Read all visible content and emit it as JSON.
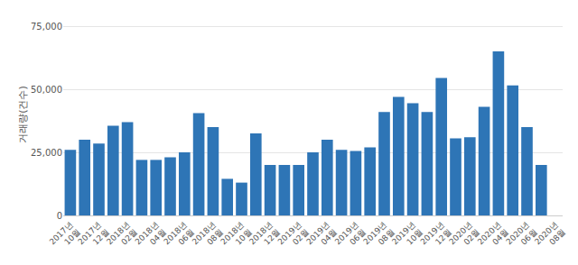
{
  "chart_data": {
    "type": "bar",
    "ylabel": "거래량(건수)",
    "categories": [
      "2017년\n10월",
      null,
      "2017년\n12월",
      null,
      "2018년\n02월",
      null,
      "2018년\n04월",
      null,
      "2018년\n06월",
      null,
      "2018년\n08월",
      null,
      "2018년\n10월",
      null,
      "2018년\n12월",
      null,
      "2019년\n02월",
      null,
      "2019년\n04월",
      null,
      "2019년\n06월",
      null,
      "2019년\n08월",
      null,
      "2019년\n10월",
      null,
      "2019년\n12월",
      null,
      "2020년\n02월",
      null,
      "2020년\n04월",
      null,
      "2020년\n06월",
      null,
      "2020년\n08월"
    ],
    "values": [
      26000,
      30000,
      28500,
      35500,
      37000,
      22000,
      22000,
      23000,
      25000,
      40500,
      35000,
      14500,
      13000,
      32500,
      20000,
      20000,
      20000,
      25000,
      30000,
      26000,
      25500,
      27000,
      41000,
      47000,
      44500,
      41000,
      54500,
      30500,
      31000,
      43000,
      65000,
      51500,
      35000,
      20000,
      0
    ],
    "color": "#2e75b6",
    "ylim": [
      0,
      80000
    ],
    "yticks": [
      0,
      {
        "value": 25000,
        "label": "25,000"
      },
      {
        "value": 50000,
        "label": "50,000"
      },
      {
        "value": 75000,
        "label": "75,000"
      }
    ],
    "grid": true
  }
}
